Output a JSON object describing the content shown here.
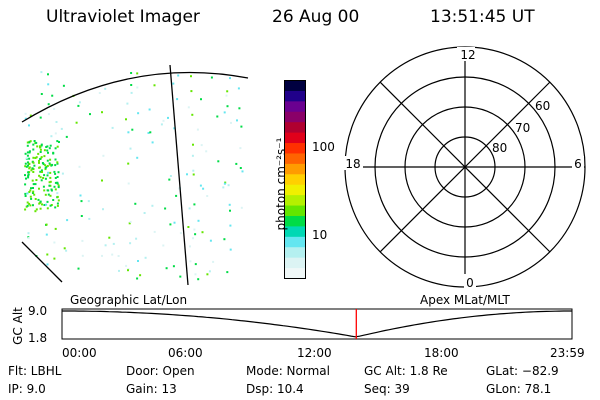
{
  "header": {
    "instrument": "Ultraviolet Imager",
    "date": "26 Aug 00",
    "time": "13:51:45 UT"
  },
  "image_panel": {
    "label": "Geographic Lat/Lon"
  },
  "colorbar": {
    "unit_label": "photon cm⁻²s⁻¹",
    "ticks": [
      "100",
      "10"
    ],
    "colors": [
      "#000040",
      "#20008a",
      "#6a0090",
      "#8a0068",
      "#b00030",
      "#e0001a",
      "#ff3000",
      "#ff6400",
      "#ff9c00",
      "#ffd000",
      "#f0f000",
      "#b4f000",
      "#64e600",
      "#00dc46",
      "#00d8b4",
      "#64e6f0",
      "#b4f0f0",
      "#dcf4f4",
      "#f0f8f8"
    ]
  },
  "polar_plot": {
    "label": "Apex MLat/MLT",
    "mlt_labels": {
      "top": "12",
      "bottom": "0",
      "left": "18",
      "right": "6"
    },
    "lat_labels": [
      "60",
      "70",
      "80"
    ]
  },
  "altitude_plot": {
    "ylabel": "GC Alt",
    "yticks": [
      "9.0",
      "1.8"
    ],
    "xticks": [
      "00:00",
      "06:00",
      "12:00",
      "18:00",
      "23:59"
    ],
    "marker_time": "13:51",
    "marker_color": "#ff0000"
  },
  "info": {
    "row1": {
      "filter": "Flt: LBHL",
      "door": "Door: Open",
      "mode": "Mode: Normal",
      "gc_alt": "GC Alt: 1.8 Re",
      "glat": "GLat: −82.9"
    },
    "row2": {
      "ip": "IP:  9.0",
      "gain": "Gain: 13",
      "dsp": "Dsp:    10.4",
      "seq": "Seq: 39",
      "glon": "GLon:  78.1"
    }
  }
}
